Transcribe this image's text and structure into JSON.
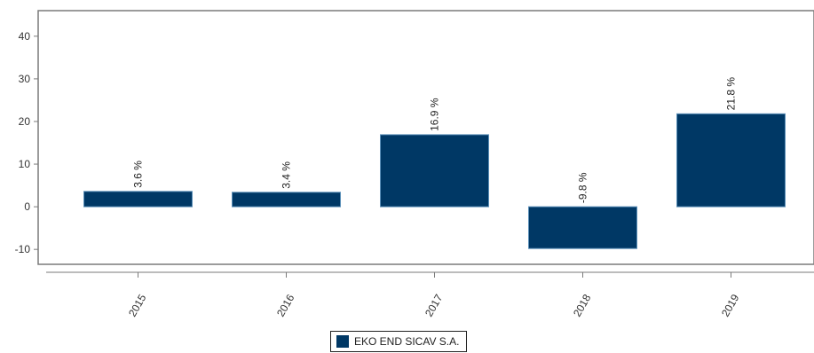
{
  "chart_data": {
    "type": "bar",
    "categories": [
      "2015",
      "2016",
      "2017",
      "2018",
      "2019"
    ],
    "series": [
      {
        "name": "EKO END SICAV S.A.",
        "values": [
          3.6,
          3.4,
          16.9,
          -9.8,
          21.8
        ],
        "labels": [
          "3.6 %",
          "3.4 %",
          "16.9 %",
          "-9.8 %",
          "21.8 %"
        ],
        "color": "#003865"
      }
    ],
    "yticks": [
      -10,
      0,
      10,
      20,
      30,
      40
    ],
    "ylim": [
      -13.5,
      46
    ],
    "grid": false,
    "legend": "bottom-center"
  }
}
